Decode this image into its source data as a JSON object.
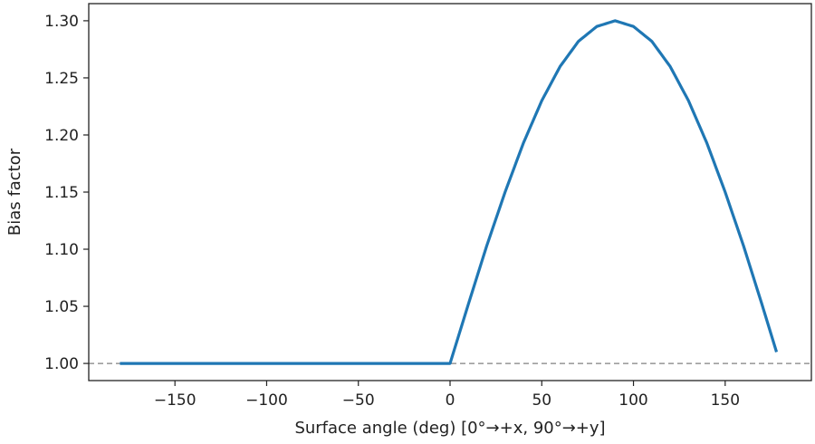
{
  "chart_data": {
    "type": "line",
    "title": "",
    "xlabel": "Surface angle (deg)  [0°→+x, 90°→+y]",
    "ylabel": "Bias factor",
    "xlim": [
      -197,
      197
    ],
    "ylim": [
      0.985,
      1.315
    ],
    "x_ticks": [
      -150,
      -100,
      -50,
      0,
      50,
      100,
      150
    ],
    "x_tick_labels": [
      "−150",
      "−100",
      "−50",
      "0",
      "50",
      "100",
      "150"
    ],
    "y_ticks": [
      1.0,
      1.05,
      1.1,
      1.15,
      1.2,
      1.25,
      1.3
    ],
    "y_tick_labels": [
      "1.00",
      "1.05",
      "1.10",
      "1.15",
      "1.20",
      "1.25",
      "1.30"
    ],
    "grid": false,
    "reference_line": {
      "y": 1.0,
      "style": "dashed",
      "color": "#808080"
    },
    "series": [
      {
        "color": "#1f77b4",
        "x": [
          -180,
          -150,
          -120,
          -90,
          -60,
          -30,
          0,
          10,
          20,
          30,
          40,
          50,
          60,
          70,
          80,
          90,
          100,
          110,
          120,
          130,
          140,
          150,
          160,
          170,
          178
        ],
        "y": [
          1.0,
          1.0,
          1.0,
          1.0,
          1.0,
          1.0,
          1.0,
          1.052,
          1.103,
          1.15,
          1.193,
          1.23,
          1.26,
          1.282,
          1.295,
          1.3,
          1.295,
          1.282,
          1.26,
          1.23,
          1.193,
          1.15,
          1.103,
          1.052,
          1.01
        ]
      }
    ]
  }
}
